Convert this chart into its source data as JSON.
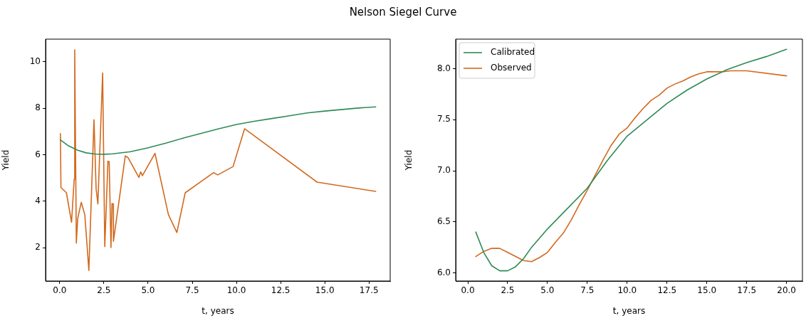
{
  "chart_data": [
    {
      "type": "line",
      "title": "Nelson Siegel Curve",
      "xlabel": "t, years",
      "ylabel": "Yield",
      "xlim": [
        -0.8,
        18.7
      ],
      "ylim": [
        0.56,
        10.98
      ],
      "xticks": [
        {
          "value": 0,
          "label": "0.0"
        },
        {
          "value": 2.5,
          "label": "2.5"
        },
        {
          "value": 5,
          "label": "5.0"
        },
        {
          "value": 7.5,
          "label": "7.5"
        },
        {
          "value": 10,
          "label": "10.0"
        },
        {
          "value": 12.5,
          "label": "12.5"
        },
        {
          "value": 15,
          "label": "15.0"
        },
        {
          "value": 17.5,
          "label": "17.5"
        }
      ],
      "yticks": [
        2,
        4,
        6,
        8,
        10
      ],
      "grid": false,
      "legend": false,
      "marker": "none",
      "line_style": "solid",
      "series": [
        {
          "color": "#2e8b57",
          "x": [
            0.04,
            0.5,
            1,
            1.5,
            2,
            2.5,
            3,
            4,
            5,
            6,
            7,
            8,
            9,
            10,
            11,
            12,
            13,
            14,
            15,
            16,
            17,
            17.88
          ],
          "values": [
            6.64,
            6.38,
            6.2,
            6.08,
            6.03,
            6.02,
            6.04,
            6.13,
            6.3,
            6.5,
            6.72,
            6.92,
            7.12,
            7.3,
            7.44,
            7.56,
            7.68,
            7.8,
            7.88,
            7.95,
            8.02,
            8.06
          ]
        },
        {
          "color": "#d2691e",
          "x": [
            0.04,
            0.07,
            0.38,
            0.67,
            0.82,
            0.85,
            0.94,
            1.02,
            1.22,
            1.42,
            1.65,
            1.94,
            2.06,
            2.16,
            2.43,
            2.55,
            2.73,
            2.8,
            2.9,
            2.96,
            3.03,
            3.04,
            3.71,
            3.87,
            4.48,
            4.58,
            4.68,
            5.39,
            6.15,
            6.63,
            7.1,
            8.71,
            8.94,
            9.81,
            10.46,
            14.56,
            17.88
          ],
          "values": [
            6.91,
            4.59,
            4.36,
            3.09,
            4.95,
            10.52,
            2.19,
            3.26,
            3.95,
            3.42,
            1.01,
            7.51,
            4.54,
            3.88,
            9.52,
            2.04,
            5.72,
            5.7,
            2.0,
            3.9,
            3.88,
            2.27,
            5.95,
            5.87,
            5.02,
            5.26,
            5.1,
            6.06,
            3.42,
            2.65,
            4.36,
            5.23,
            5.13,
            5.49,
            7.12,
            4.82,
            4.42
          ]
        }
      ]
    },
    {
      "type": "line",
      "xlabel": "t, years",
      "ylabel": "Yield",
      "xlim": [
        -0.76,
        21.0
      ],
      "ylim": [
        5.92,
        8.29
      ],
      "xticks": [
        {
          "value": 0,
          "label": "0.0"
        },
        {
          "value": 2.5,
          "label": "2.5"
        },
        {
          "value": 5,
          "label": "5.0"
        },
        {
          "value": 7.5,
          "label": "7.5"
        },
        {
          "value": 10,
          "label": "10.0"
        },
        {
          "value": 12.5,
          "label": "12.5"
        },
        {
          "value": 15,
          "label": "15.0"
        },
        {
          "value": 17.5,
          "label": "17.5"
        },
        {
          "value": 20,
          "label": "20.0"
        }
      ],
      "yticks": [
        {
          "value": 6,
          "label": "6.0"
        },
        {
          "value": 6.5,
          "label": "6.5"
        },
        {
          "value": 7,
          "label": "7.0"
        },
        {
          "value": 7.5,
          "label": "7.5"
        },
        {
          "value": 8,
          "label": "8.0"
        }
      ],
      "grid": false,
      "legend": "top left",
      "marker": "none",
      "line_style": "solid",
      "series": [
        {
          "name": "Calibrated",
          "color": "#2e8b57",
          "x": [
            0.5,
            1,
            1.5,
            2,
            2.5,
            3,
            3.5,
            4,
            5,
            6,
            7.5,
            8.75,
            10,
            11.25,
            12.5,
            13.75,
            15,
            16.25,
            17.5,
            18.75,
            20
          ],
          "values": [
            6.4,
            6.2,
            6.07,
            6.02,
            6.02,
            6.06,
            6.14,
            6.25,
            6.43,
            6.59,
            6.83,
            7.1,
            7.34,
            7.5,
            7.66,
            7.79,
            7.9,
            7.99,
            8.06,
            8.12,
            8.19
          ]
        },
        {
          "name": "Observed",
          "color": "#d2691e",
          "x": [
            0.5,
            1,
            1.5,
            2,
            2.5,
            3,
            3.5,
            4,
            4.5,
            5,
            5.5,
            6,
            6.5,
            7,
            7.5,
            8,
            8.5,
            9,
            9.5,
            10,
            10.5,
            11,
            11.5,
            12,
            12.5,
            13,
            13.5,
            14,
            14.5,
            15,
            16,
            16.5,
            17.5,
            20
          ],
          "values": [
            6.16,
            6.21,
            6.24,
            6.24,
            6.2,
            6.16,
            6.12,
            6.11,
            6.15,
            6.2,
            6.3,
            6.39,
            6.52,
            6.67,
            6.81,
            6.96,
            7.11,
            7.25,
            7.36,
            7.42,
            7.52,
            7.61,
            7.69,
            7.74,
            7.81,
            7.85,
            7.88,
            7.92,
            7.95,
            7.97,
            7.97,
            7.98,
            7.98,
            7.93
          ]
        }
      ]
    }
  ]
}
